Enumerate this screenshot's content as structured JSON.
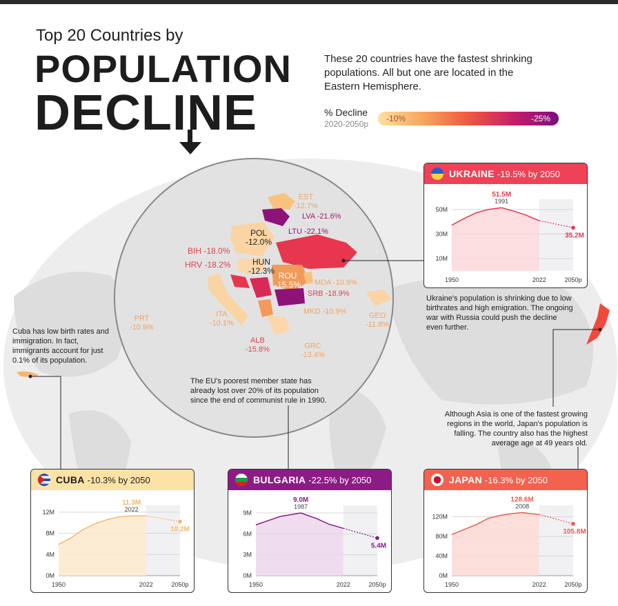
{
  "title": {
    "line1": "Top 20 Countries by",
    "line2": "POPULATION",
    "line3": "DECLINE"
  },
  "intro": "These 20 countries have the fastest shrinking populations. All but one are located in the Eastern Hemisphere.",
  "legend": {
    "title": "% Decline",
    "subtitle": "2020-2050p",
    "min_label": "-10%",
    "max_label": "-25%"
  },
  "notes": {
    "cuba": "Cuba has low birth rates and immigration. In fact, immigrants account for just 0.1% of its population.",
    "ukraine": "Ukraine's population is shrinking due to low birthrates and high emigration. The ongoing war with Russia could push the decline even further.",
    "bulgaria": "The EU's poorest member state has already  lost over 20% of its population since the end of communist rule in 1990.",
    "japan": "Although Asia is one of the fastest growing regions in the world, Japan's population is falling. The country also has the  highest average age at 49 years old."
  },
  "map_labels": [
    {
      "code": "EST",
      "value": "-12.7%",
      "color": "#f4a261"
    },
    {
      "code": "LVA",
      "value": "-21.6%",
      "color": "#a8176f"
    },
    {
      "code": "LTU",
      "value": "-22.1%",
      "color": "#8e1278"
    },
    {
      "code": "POL",
      "value": "-12.0%",
      "color": "#222222"
    },
    {
      "code": "BIH",
      "value": "-18.0%",
      "color": "#e0424b"
    },
    {
      "code": "HRV",
      "value": "-18.2%",
      "color": "#e0424b"
    },
    {
      "code": "HUN",
      "value": "-12.3%",
      "color": "#222222"
    },
    {
      "code": "ROU",
      "value": "-15.5%",
      "color": "#ffffff"
    },
    {
      "code": "MDA",
      "value": "-10.9%",
      "color": "#f4a261"
    },
    {
      "code": "SRB",
      "value": "-18.9%",
      "color": "#e0424b"
    },
    {
      "code": "PRT",
      "value": "-10.9%",
      "color": "#f4a261"
    },
    {
      "code": "ITA",
      "value": "-10.1%",
      "color": "#f4a261"
    },
    {
      "code": "MKD",
      "value": "-10.9%",
      "color": "#f4a261"
    },
    {
      "code": "GEO",
      "value": "-11.8%",
      "color": "#f4a261"
    },
    {
      "code": "ALB",
      "value": "-15.8%",
      "color": "#e0424b"
    },
    {
      "code": "GRC",
      "value": "-13.4%",
      "color": "#f4a261"
    }
  ],
  "chart_data": [
    {
      "type": "area",
      "country": "UKRAINE",
      "header_suffix": "-19.5% by 2050",
      "color": "#e8364f",
      "fill": "#fcd7da",
      "head_bg": "#ef4157",
      "x": [
        1950,
        1960,
        1970,
        1980,
        1991,
        2000,
        2010,
        2022,
        2050
      ],
      "values": [
        37.3,
        42.6,
        47.3,
        50.0,
        51.5,
        49.0,
        45.9,
        41.0,
        35.2
      ],
      "peak": {
        "label": "51.5M",
        "year": "1991"
      },
      "end_label": "35.2M",
      "y_ticks": [
        {
          "v": 10,
          "t": "10M"
        },
        {
          "v": 30,
          "t": "30M"
        },
        {
          "v": 50,
          "t": "50M"
        }
      ],
      "ylim": [
        0,
        55
      ],
      "x_ticks": [
        "1950",
        "2022",
        "2050p"
      ]
    },
    {
      "type": "area",
      "country": "CUBA",
      "header_suffix": "-10.3% by 2050",
      "color": "#f5b66b",
      "fill": "#fde9cc",
      "head_bg": "#fde2a6",
      "x": [
        1950,
        1960,
        1970,
        1980,
        1990,
        2000,
        2010,
        2022,
        2050
      ],
      "values": [
        5.9,
        7.1,
        8.7,
        9.8,
        10.6,
        11.1,
        11.3,
        11.3,
        10.2
      ],
      "peak": {
        "label": "11.3M",
        "year": "2022"
      },
      "end_label": "10.2M",
      "y_ticks": [
        {
          "v": 0,
          "t": "0M"
        },
        {
          "v": 4,
          "t": "4M"
        },
        {
          "v": 8,
          "t": "8M"
        },
        {
          "v": 12,
          "t": "12M"
        }
      ],
      "ylim": [
        0,
        12.5
      ],
      "x_ticks": [
        "1950",
        "2022",
        "2050p"
      ]
    },
    {
      "type": "area",
      "country": "BULGARIA",
      "header_suffix": "-22.5% by 2050",
      "color": "#8c1a86",
      "fill": "#ecd6ec",
      "head_bg": "#8d1b86",
      "x": [
        1950,
        1960,
        1970,
        1987,
        2000,
        2010,
        2022,
        2050
      ],
      "values": [
        7.3,
        7.9,
        8.5,
        9.0,
        8.2,
        7.4,
        6.8,
        5.4
      ],
      "peak": {
        "label": "9.0M",
        "year": "1987"
      },
      "end_label": "5.4M",
      "y_ticks": [
        {
          "v": 0,
          "t": "0M"
        },
        {
          "v": 3,
          "t": "3M"
        },
        {
          "v": 6,
          "t": "6M"
        },
        {
          "v": 9,
          "t": "9M"
        }
      ],
      "ylim": [
        0,
        9.5
      ],
      "x_ticks": [
        "1950",
        "2022",
        "2050p"
      ]
    },
    {
      "type": "area",
      "country": "JAPAN",
      "header_suffix": "-16.3% by 2050",
      "color": "#ef5a4b",
      "fill": "#fcd9d3",
      "head_bg": "#f2624e",
      "x": [
        1950,
        1960,
        1970,
        1980,
        1990,
        2000,
        2008,
        2022,
        2050
      ],
      "values": [
        84,
        94,
        104,
        117,
        123,
        126.8,
        128.6,
        124.9,
        105.8
      ],
      "peak": {
        "label": "128.6M",
        "year": "2008"
      },
      "end_label": "105.8M",
      "y_ticks": [
        {
          "v": 0,
          "t": "0M"
        },
        {
          "v": 40,
          "t": "40M"
        },
        {
          "v": 80,
          "t": "80M"
        },
        {
          "v": 120,
          "t": "120M"
        }
      ],
      "ylim": [
        0,
        135
      ],
      "x_ticks": [
        "1950",
        "2022",
        "2050p"
      ]
    }
  ]
}
